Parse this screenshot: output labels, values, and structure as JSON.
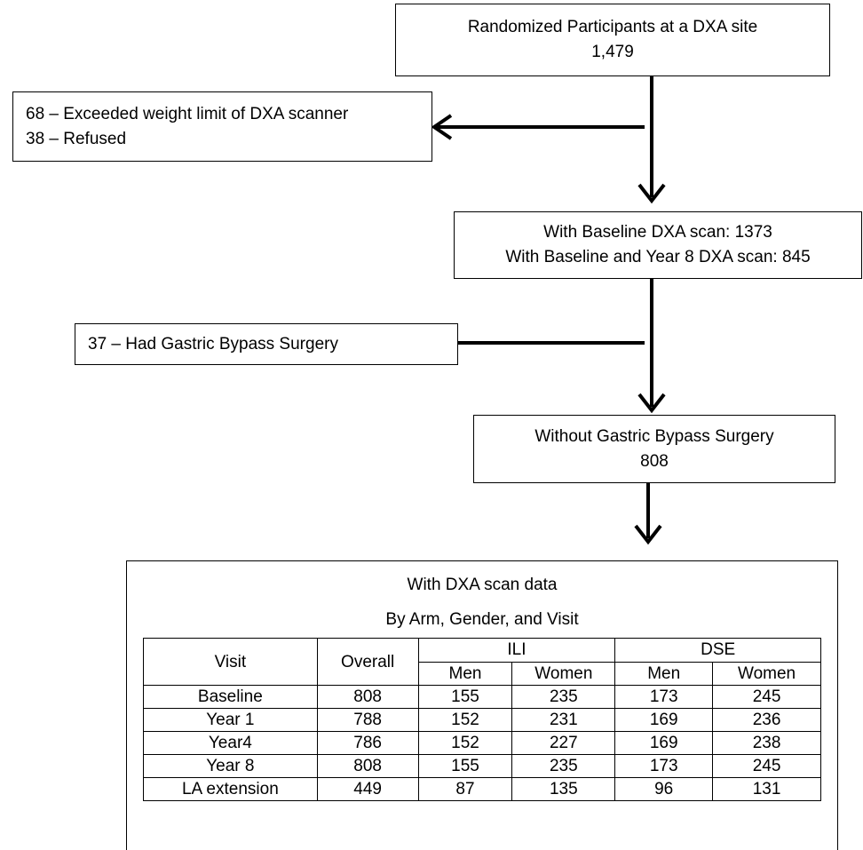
{
  "box_randomized": {
    "line1": "Randomized Participants at a DXA site",
    "line2": "1,479"
  },
  "box_excluded_1": {
    "line1": "68 – Exceeded weight limit of DXA scanner",
    "line2": "38 – Refused"
  },
  "box_baseline": {
    "line1": "With Baseline DXA scan: 1373",
    "line2": "With Baseline and Year 8 DXA scan: 845"
  },
  "box_excluded_2": {
    "line1": "37 – Had Gastric Bypass Surgery"
  },
  "box_without_gbs": {
    "line1": "Without Gastric Bypass Surgery",
    "line2": "808"
  },
  "final_box": {
    "title": "With DXA scan data",
    "subtitle": "By Arm, Gender, and Visit",
    "table": {
      "col_visit": "Visit",
      "col_overall": "Overall",
      "group_ili": "ILI",
      "group_dse": "DSE",
      "sub_men_ili": "Men",
      "sub_women_ili": "Women",
      "sub_men_dse": "Men",
      "sub_women_dse": "Women",
      "rows": [
        [
          "Baseline",
          "808",
          "155",
          "235",
          "173",
          "245"
        ],
        [
          "Year 1",
          "788",
          "152",
          "231",
          "169",
          "236"
        ],
        [
          "Year4",
          "786",
          "152",
          "227",
          "169",
          "238"
        ],
        [
          "Year 8",
          "808",
          "155",
          "235",
          "173",
          "245"
        ],
        [
          "LA extension",
          "449",
          "87",
          "135",
          "96",
          "131"
        ]
      ]
    }
  }
}
